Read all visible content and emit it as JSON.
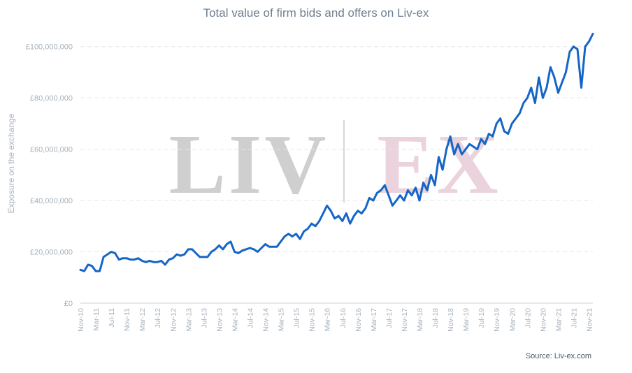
{
  "chart_data": {
    "type": "line",
    "title": "Total value of firm bids and offers on Liv-ex",
    "ylabel": "Exposure on the exchange",
    "xlabel": "",
    "source": "Source: Liv-ex.com",
    "watermark": {
      "left": "LIV",
      "right": "EX",
      "left_color": "#cfcfcf",
      "right_color": "#ead3dc"
    },
    "ylim": [
      0,
      110000000
    ],
    "yticks": [
      0,
      20000000,
      40000000,
      60000000,
      80000000,
      100000000
    ],
    "ytick_labels": [
      "£0",
      "£20,000,000",
      "£40,000,000",
      "£60,000,000",
      "£80,000,000",
      "£100,000,000"
    ],
    "xlim": [
      "2010-11",
      "2021-12"
    ],
    "xticks": [
      "Nov-10",
      "Mar-11",
      "Jul-11",
      "Nov-11",
      "Mar-12",
      "Jul-12",
      "Nov-12",
      "Mar-13",
      "Jul-13",
      "Nov-13",
      "Mar-14",
      "Jul-14",
      "Nov-14",
      "Mar-15",
      "Jul-15",
      "Nov-15",
      "Mar-16",
      "Jul-16",
      "Nov-16",
      "Mar-17",
      "Jul-17",
      "Nov-17",
      "Mar-18",
      "Jul-18",
      "Nov-18",
      "Mar-19",
      "Jul-19",
      "Nov-19",
      "Mar-20",
      "Jul-20",
      "Nov-20",
      "Mar-21",
      "Jul-21",
      "Nov-21"
    ],
    "grid": true,
    "line_color": "#1565c8",
    "series": [
      {
        "name": "",
        "x": [
          "2010-11",
          "2010-12",
          "2011-01",
          "2011-02",
          "2011-03",
          "2011-04",
          "2011-05",
          "2011-06",
          "2011-07",
          "2011-08",
          "2011-09",
          "2011-10",
          "2011-11",
          "2011-12",
          "2012-01",
          "2012-02",
          "2012-03",
          "2012-04",
          "2012-05",
          "2012-06",
          "2012-07",
          "2012-08",
          "2012-09",
          "2012-10",
          "2012-11",
          "2012-12",
          "2013-01",
          "2013-02",
          "2013-03",
          "2013-04",
          "2013-05",
          "2013-06",
          "2013-07",
          "2013-08",
          "2013-09",
          "2013-10",
          "2013-11",
          "2013-12",
          "2014-01",
          "2014-02",
          "2014-03",
          "2014-04",
          "2014-05",
          "2014-06",
          "2014-07",
          "2014-08",
          "2014-09",
          "2014-10",
          "2014-11",
          "2014-12",
          "2015-01",
          "2015-02",
          "2015-03",
          "2015-04",
          "2015-05",
          "2015-06",
          "2015-07",
          "2015-08",
          "2015-09",
          "2015-10",
          "2015-11",
          "2015-12",
          "2016-01",
          "2016-02",
          "2016-03",
          "2016-04",
          "2016-05",
          "2016-06",
          "2016-07",
          "2016-08",
          "2016-09",
          "2016-10",
          "2016-11",
          "2016-12",
          "2017-01",
          "2017-02",
          "2017-03",
          "2017-04",
          "2017-05",
          "2017-06",
          "2017-07",
          "2017-08",
          "2017-09",
          "2017-10",
          "2017-11",
          "2017-12",
          "2018-01",
          "2018-02",
          "2018-03",
          "2018-04",
          "2018-05",
          "2018-06",
          "2018-07",
          "2018-08",
          "2018-09",
          "2018-10",
          "2018-11",
          "2018-12",
          "2019-01",
          "2019-02",
          "2019-03",
          "2019-04",
          "2019-05",
          "2019-06",
          "2019-07",
          "2019-08",
          "2019-09",
          "2019-10",
          "2019-11",
          "2019-12",
          "2020-01",
          "2020-02",
          "2020-03",
          "2020-04",
          "2020-05",
          "2020-06",
          "2020-07",
          "2020-08",
          "2020-09",
          "2020-10",
          "2020-11",
          "2020-12",
          "2021-01",
          "2021-02",
          "2021-03",
          "2021-04",
          "2021-05",
          "2021-06",
          "2021-07",
          "2021-08",
          "2021-09",
          "2021-10",
          "2021-11",
          "2021-12"
        ],
        "values": [
          13000000,
          12500000,
          15000000,
          14500000,
          12500000,
          12500000,
          18000000,
          19000000,
          20000000,
          19500000,
          17000000,
          17500000,
          17500000,
          17000000,
          17000000,
          17500000,
          16500000,
          16000000,
          16500000,
          16000000,
          16000000,
          16500000,
          15000000,
          17000000,
          17500000,
          19000000,
          18500000,
          19000000,
          21000000,
          21000000,
          19500000,
          18000000,
          18000000,
          18000000,
          20000000,
          21000000,
          22500000,
          21000000,
          23000000,
          24000000,
          20000000,
          19500000,
          20500000,
          21000000,
          21500000,
          21000000,
          20000000,
          21500000,
          23000000,
          22000000,
          22000000,
          22000000,
          24000000,
          26000000,
          27000000,
          26000000,
          27000000,
          25000000,
          28000000,
          29000000,
          31000000,
          30000000,
          32000000,
          35000000,
          38000000,
          36000000,
          33000000,
          34000000,
          32000000,
          35000000,
          31000000,
          34000000,
          36000000,
          35000000,
          37000000,
          41000000,
          40000000,
          43000000,
          44000000,
          46000000,
          42000000,
          38000000,
          40000000,
          42000000,
          40000000,
          44000000,
          42000000,
          45000000,
          40000000,
          47000000,
          44000000,
          50000000,
          46000000,
          57000000,
          52000000,
          60000000,
          65000000,
          58000000,
          62000000,
          58000000,
          60000000,
          62000000,
          61000000,
          60000000,
          64000000,
          62000000,
          66000000,
          65000000,
          70000000,
          72000000,
          67000000,
          66000000,
          70000000,
          72000000,
          74000000,
          78000000,
          80000000,
          84000000,
          78000000,
          88000000,
          80000000,
          84000000,
          92000000,
          88000000,
          82000000,
          86000000,
          90000000,
          98000000,
          100000000,
          99000000,
          84000000,
          100000000,
          102000000,
          105000000
        ]
      }
    ]
  }
}
